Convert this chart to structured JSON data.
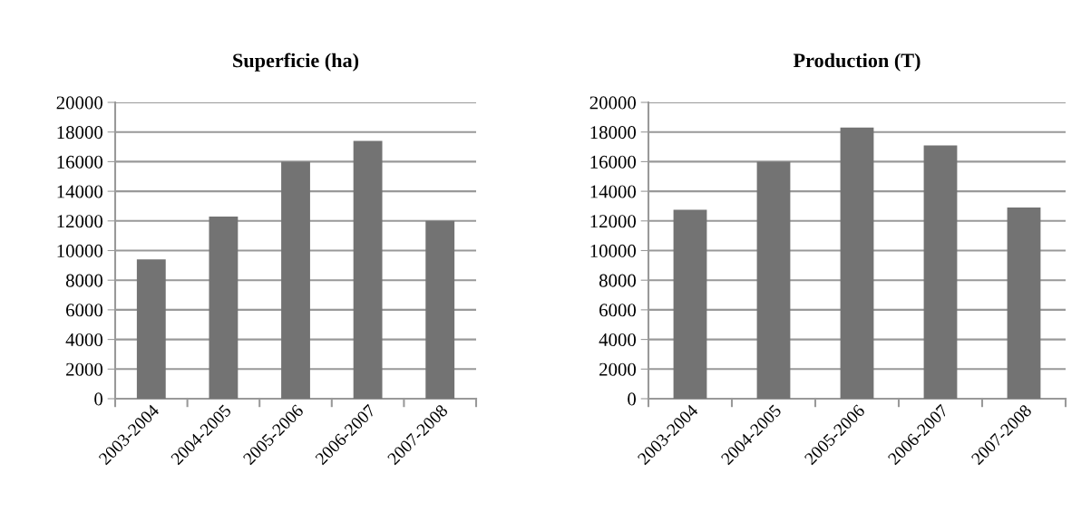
{
  "chart_data": [
    {
      "type": "bar",
      "title": "Superficie (ha)",
      "categories": [
        "2003-2004",
        "2004-2005",
        "2005-2006",
        "2006-2007",
        "2007-2008"
      ],
      "values": [
        9400,
        12300,
        16000,
        17400,
        12000
      ],
      "color": "#737373",
      "ylim": [
        0,
        20000
      ],
      "yticks": [
        0,
        2000,
        4000,
        6000,
        8000,
        10000,
        12000,
        14000,
        16000,
        18000,
        20000
      ],
      "grid": "y"
    },
    {
      "type": "bar",
      "title": "Production (T)",
      "categories": [
        "2003-2004",
        "2004-2005",
        "2005-2006",
        "2006-2007",
        "2007-2008"
      ],
      "values": [
        12750,
        16000,
        18300,
        17100,
        12900
      ],
      "color": "#737373",
      "ylim": [
        0,
        20000
      ],
      "yticks": [
        0,
        2000,
        4000,
        6000,
        8000,
        10000,
        12000,
        14000,
        16000,
        18000,
        20000
      ],
      "grid": "y"
    }
  ]
}
